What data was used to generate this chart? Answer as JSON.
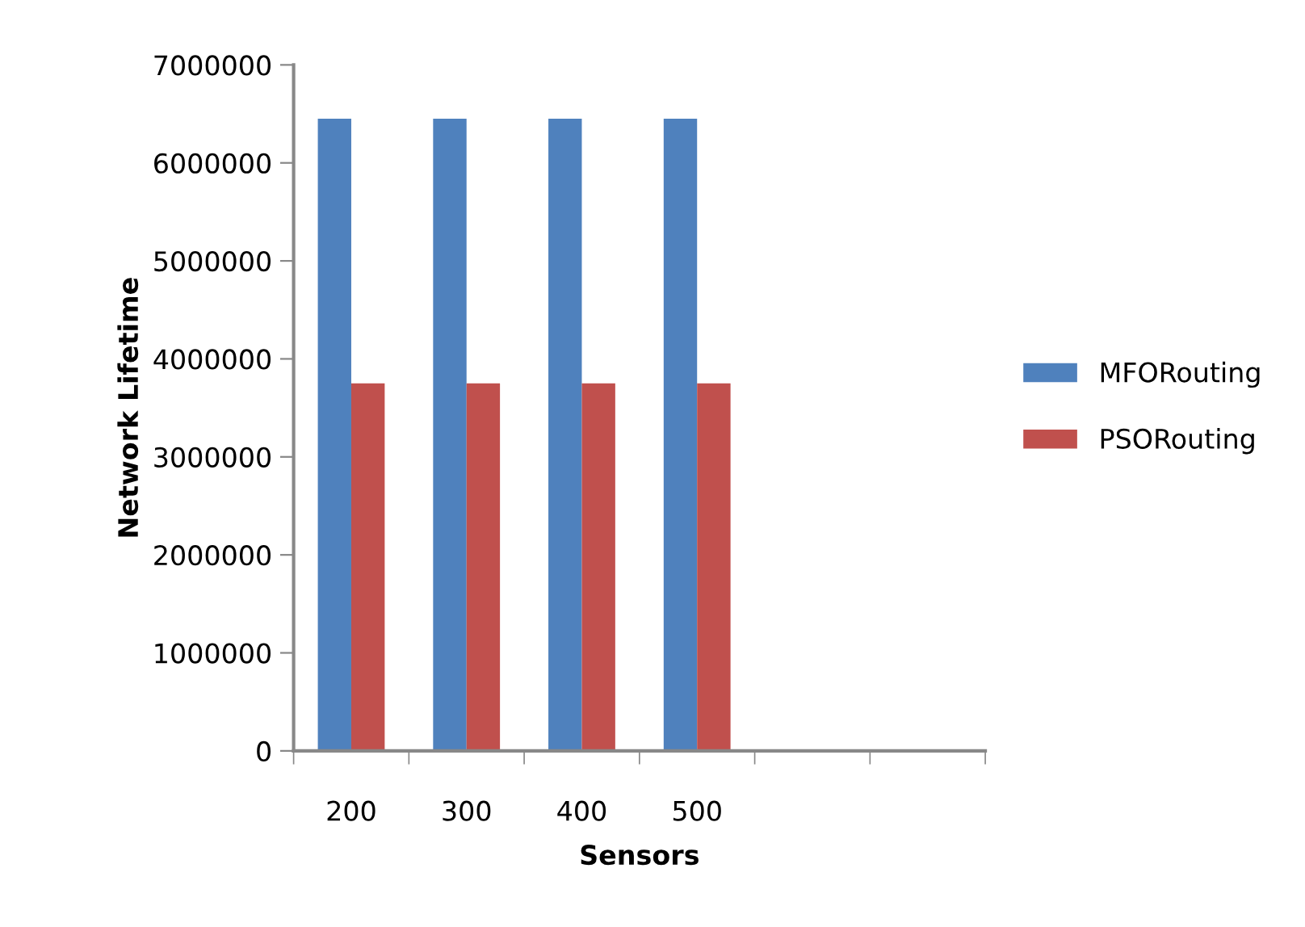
{
  "chart_data": {
    "type": "bar",
    "xlabel": "Sensors",
    "ylabel": "Network Lifetime",
    "categories": [
      "200",
      "300",
      "400",
      "500",
      null,
      null
    ],
    "series": [
      {
        "name": "MFORouting",
        "color": "#4f81bd",
        "values": [
          6450000,
          6450000,
          6450000,
          6450000,
          null,
          null
        ]
      },
      {
        "name": "PSORouting",
        "color": "#c0504d",
        "values": [
          3750000,
          3750000,
          3750000,
          3750000,
          null,
          null
        ]
      }
    ],
    "ylim": [
      0,
      7000000
    ],
    "yticks": [
      0,
      1000000,
      2000000,
      3000000,
      4000000,
      5000000,
      6000000,
      7000000
    ],
    "grid": false,
    "legend": "right"
  }
}
